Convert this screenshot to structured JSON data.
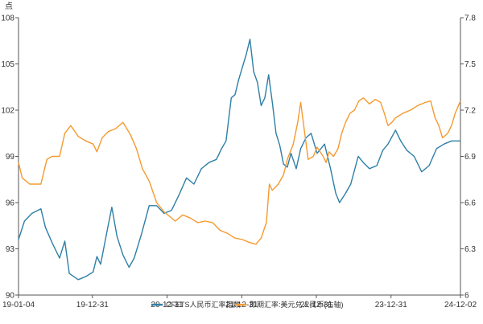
{
  "chart_data": {
    "type": "line",
    "y_left_unit": "点",
    "x_tick_labels": [
      "19-01-04",
      "19-12-31",
      "20-12-31",
      "21-12-31",
      "22-12-31",
      "23-12-31",
      "24-12-02"
    ],
    "y_left_ticks": [
      "90",
      "93",
      "96",
      "99",
      "102",
      "105",
      "108"
    ],
    "y_right_ticks": [
      "6",
      "6.3",
      "6.6",
      "6.9",
      "7.2",
      "7.5",
      "7.8"
    ],
    "ylim_left": [
      90,
      108
    ],
    "ylim_right": [
      6,
      7.8
    ],
    "grid": false,
    "legend_placement": "bottom",
    "series": [
      {
        "name": "CFETS人民币汇率指数",
        "axis": "left",
        "color": "#2e7fa6",
        "points": [
          [
            2019.0,
            93.6
          ],
          [
            2019.08,
            94.8
          ],
          [
            2019.18,
            95.3
          ],
          [
            2019.3,
            95.6
          ],
          [
            2019.36,
            94.4
          ],
          [
            2019.45,
            93.4
          ],
          [
            2019.55,
            92.4
          ],
          [
            2019.62,
            93.5
          ],
          [
            2019.68,
            91.4
          ],
          [
            2019.8,
            91.0
          ],
          [
            2019.9,
            91.2
          ],
          [
            2020.0,
            91.5
          ],
          [
            2020.05,
            92.5
          ],
          [
            2020.1,
            92.0
          ],
          [
            2020.2,
            94.5
          ],
          [
            2020.25,
            95.7
          ],
          [
            2020.32,
            93.8
          ],
          [
            2020.4,
            92.6
          ],
          [
            2020.48,
            91.8
          ],
          [
            2020.55,
            92.4
          ],
          [
            2020.65,
            94.0
          ],
          [
            2020.75,
            95.8
          ],
          [
            2020.85,
            95.8
          ],
          [
            2020.95,
            95.3
          ],
          [
            2021.05,
            95.5
          ],
          [
            2021.15,
            96.5
          ],
          [
            2021.25,
            97.6
          ],
          [
            2021.35,
            97.2
          ],
          [
            2021.45,
            98.2
          ],
          [
            2021.55,
            98.6
          ],
          [
            2021.65,
            98.8
          ],
          [
            2021.72,
            99.5
          ],
          [
            2021.78,
            100.0
          ],
          [
            2021.85,
            102.8
          ],
          [
            2021.9,
            103.0
          ],
          [
            2021.95,
            104.0
          ],
          [
            2022.0,
            104.8
          ],
          [
            2022.05,
            105.6
          ],
          [
            2022.1,
            106.6
          ],
          [
            2022.15,
            104.5
          ],
          [
            2022.2,
            103.8
          ],
          [
            2022.25,
            102.3
          ],
          [
            2022.3,
            102.8
          ],
          [
            2022.35,
            104.3
          ],
          [
            2022.4,
            102.5
          ],
          [
            2022.45,
            100.5
          ],
          [
            2022.5,
            99.7
          ],
          [
            2022.55,
            98.5
          ],
          [
            2022.6,
            98.3
          ],
          [
            2022.65,
            99.2
          ],
          [
            2022.72,
            98.2
          ],
          [
            2022.78,
            99.5
          ],
          [
            2022.85,
            100.2
          ],
          [
            2022.92,
            100.5
          ],
          [
            2023.0,
            99.2
          ],
          [
            2023.05,
            99.5
          ],
          [
            2023.1,
            99.8
          ],
          [
            2023.18,
            98.2
          ],
          [
            2023.25,
            96.6
          ],
          [
            2023.3,
            96.0
          ],
          [
            2023.38,
            96.6
          ],
          [
            2023.45,
            97.2
          ],
          [
            2023.55,
            99.0
          ],
          [
            2023.62,
            98.6
          ],
          [
            2023.7,
            98.2
          ],
          [
            2023.8,
            98.4
          ],
          [
            2023.88,
            99.4
          ],
          [
            2023.95,
            99.8
          ],
          [
            2024.05,
            100.7
          ],
          [
            2024.12,
            100.0
          ],
          [
            2024.2,
            99.4
          ],
          [
            2024.3,
            99.0
          ],
          [
            2024.4,
            98.0
          ],
          [
            2024.5,
            98.4
          ],
          [
            2024.6,
            99.5
          ],
          [
            2024.7,
            99.8
          ],
          [
            2024.8,
            100.0
          ],
          [
            2024.92,
            100.0
          ]
        ]
      },
      {
        "name": "即期汇率:美元兑人民币(右轴)",
        "axis": "right",
        "color": "#f59a2f",
        "points": [
          [
            2019.0,
            6.86
          ],
          [
            2019.05,
            6.76
          ],
          [
            2019.15,
            6.72
          ],
          [
            2019.25,
            6.72
          ],
          [
            2019.3,
            6.72
          ],
          [
            2019.38,
            6.88
          ],
          [
            2019.45,
            6.9
          ],
          [
            2019.55,
            6.9
          ],
          [
            2019.62,
            7.05
          ],
          [
            2019.7,
            7.1
          ],
          [
            2019.8,
            7.03
          ],
          [
            2019.9,
            7.0
          ],
          [
            2020.0,
            6.98
          ],
          [
            2020.05,
            6.93
          ],
          [
            2020.12,
            7.02
          ],
          [
            2020.2,
            7.06
          ],
          [
            2020.3,
            7.08
          ],
          [
            2020.4,
            7.12
          ],
          [
            2020.45,
            7.08
          ],
          [
            2020.5,
            7.04
          ],
          [
            2020.58,
            6.95
          ],
          [
            2020.66,
            6.82
          ],
          [
            2020.75,
            6.74
          ],
          [
            2020.85,
            6.6
          ],
          [
            2020.95,
            6.54
          ],
          [
            2021.1,
            6.48
          ],
          [
            2021.2,
            6.52
          ],
          [
            2021.3,
            6.5
          ],
          [
            2021.4,
            6.47
          ],
          [
            2021.5,
            6.48
          ],
          [
            2021.6,
            6.47
          ],
          [
            2021.7,
            6.42
          ],
          [
            2021.8,
            6.4
          ],
          [
            2021.9,
            6.37
          ],
          [
            2022.0,
            6.36
          ],
          [
            2022.1,
            6.34
          ],
          [
            2022.18,
            6.33
          ],
          [
            2022.25,
            6.37
          ],
          [
            2022.32,
            6.47
          ],
          [
            2022.36,
            6.72
          ],
          [
            2022.4,
            6.68
          ],
          [
            2022.48,
            6.72
          ],
          [
            2022.55,
            6.78
          ],
          [
            2022.6,
            6.88
          ],
          [
            2022.68,
            6.98
          ],
          [
            2022.74,
            7.12
          ],
          [
            2022.78,
            7.25
          ],
          [
            2022.82,
            7.1
          ],
          [
            2022.88,
            6.88
          ],
          [
            2022.95,
            6.9
          ],
          [
            2023.0,
            6.96
          ],
          [
            2023.08,
            6.9
          ],
          [
            2023.12,
            6.86
          ],
          [
            2023.16,
            6.93
          ],
          [
            2023.22,
            6.9
          ],
          [
            2023.28,
            6.95
          ],
          [
            2023.33,
            7.05
          ],
          [
            2023.38,
            7.12
          ],
          [
            2023.44,
            7.18
          ],
          [
            2023.5,
            7.2
          ],
          [
            2023.56,
            7.26
          ],
          [
            2023.62,
            7.28
          ],
          [
            2023.7,
            7.24
          ],
          [
            2023.78,
            7.27
          ],
          [
            2023.85,
            7.25
          ],
          [
            2023.9,
            7.18
          ],
          [
            2023.95,
            7.1
          ],
          [
            2024.0,
            7.12
          ],
          [
            2024.05,
            7.15
          ],
          [
            2024.15,
            7.18
          ],
          [
            2024.25,
            7.2
          ],
          [
            2024.35,
            7.23
          ],
          [
            2024.45,
            7.25
          ],
          [
            2024.52,
            7.26
          ],
          [
            2024.58,
            7.15
          ],
          [
            2024.63,
            7.1
          ],
          [
            2024.68,
            7.02
          ],
          [
            2024.75,
            7.05
          ],
          [
            2024.8,
            7.1
          ],
          [
            2024.85,
            7.18
          ],
          [
            2024.92,
            7.26
          ]
        ]
      }
    ]
  }
}
